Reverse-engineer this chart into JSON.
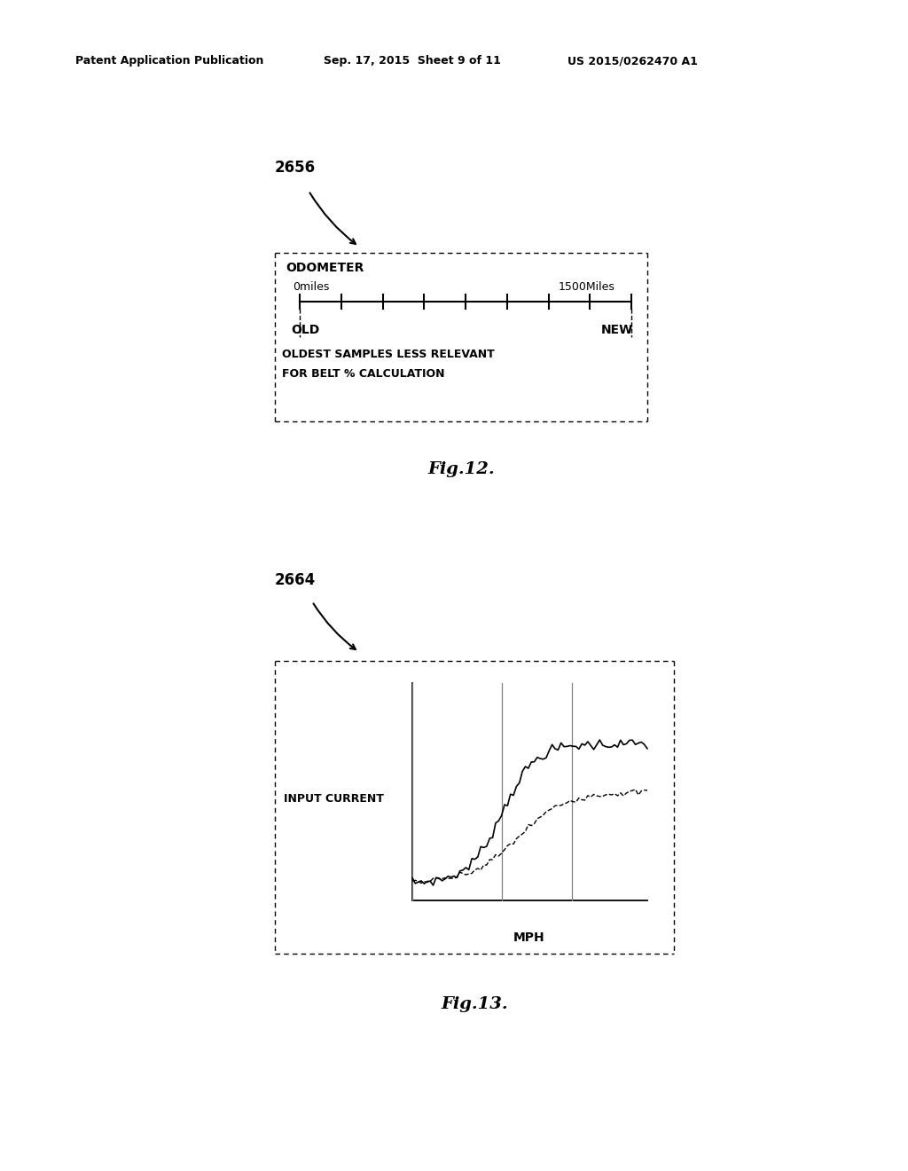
{
  "bg_color": "#ffffff",
  "header_left": "Patent Application Publication",
  "header_mid": "Sep. 17, 2015  Sheet 9 of 11",
  "header_right": "US 2015/0262470 A1",
  "fig12_label": "2656",
  "fig12_caption": "Fig.12.",
  "fig12_box": {
    "odometer_label": "ODOMETER",
    "miles_left": "0miles",
    "miles_right": "1500Miles",
    "old_label": "OLD",
    "new_label": "NEW",
    "desc_line1": "OLDEST SAMPLES LESS RELEVANT",
    "desc_line2": "FOR BELT % CALCULATION",
    "num_ticks": 8
  },
  "fig13_label": "2664",
  "fig13_caption": "Fig.13.",
  "fig13_box": {
    "ylabel": "INPUT CURRENT",
    "xlabel": "MPH"
  }
}
